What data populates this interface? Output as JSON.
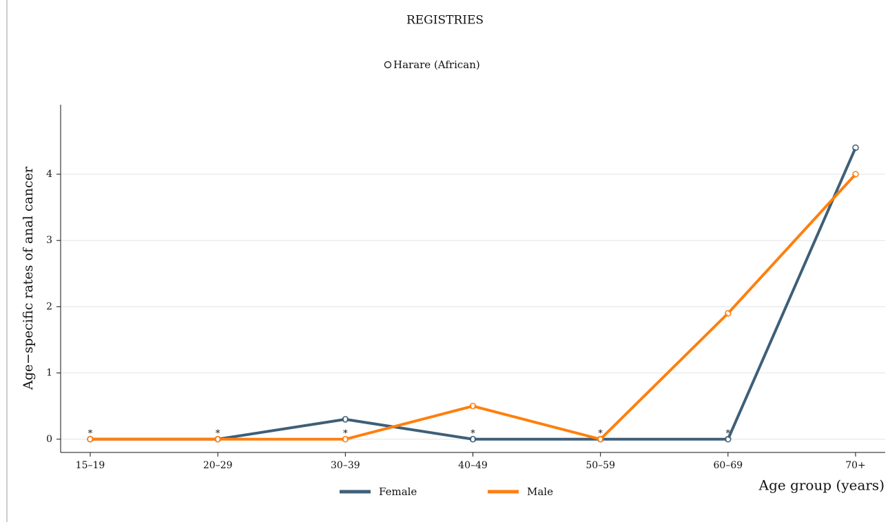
{
  "chart_data": {
    "type": "line",
    "title": "REGISTRIES",
    "subtitle": "Harare (African)",
    "y_label": "Age−specific rates of anal cancer",
    "x_label": "Age group (years)",
    "categories": [
      "15–19",
      "20–29",
      "30–39",
      "40–49",
      "50–59",
      "60–69",
      "70+"
    ],
    "series": [
      {
        "name": "Female",
        "color": "#3e5f78",
        "values": [
          0,
          0,
          0.3,
          0,
          0,
          0,
          4.4
        ]
      },
      {
        "name": "Male",
        "color": "#ff7f0e",
        "values": [
          0,
          0,
          0,
          0.5,
          0,
          1.9,
          4.0
        ]
      }
    ],
    "zero_marker": "*",
    "ylim": [
      -0.2,
      5.05
    ],
    "yticks": [
      0,
      1,
      2,
      3,
      4
    ],
    "grid": true,
    "legend": "bottom"
  }
}
